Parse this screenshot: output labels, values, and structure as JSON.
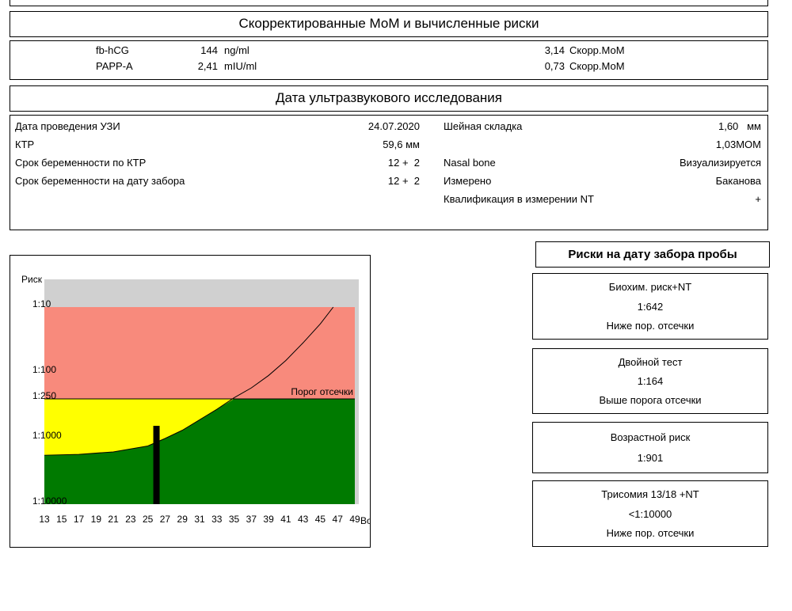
{
  "mom_section": {
    "title": "Скорректированные МоМ и вычисленные риски",
    "rows": [
      {
        "marker": "fb-hCG",
        "value": "144",
        "unit": "ng/ml",
        "mom": "3,14",
        "mom_unit": "Скорр.МоМ"
      },
      {
        "marker": "PAPP-A",
        "value": "2,41",
        "unit": "mIU/ml",
        "mom": "0,73",
        "mom_unit": "Скорр.МоМ"
      }
    ]
  },
  "us_section": {
    "title": "Дата ультразвукового исследования",
    "left": [
      {
        "label": "Дата проведения УЗИ",
        "value": "24.07.2020"
      },
      {
        "label": "КТР",
        "value": "59,6 мм"
      },
      {
        "label": "Срок беременности по КТР",
        "value": "12 +  2"
      },
      {
        "label": "Срок беременности на дату забора",
        "value": "12 +  2"
      }
    ],
    "right": [
      {
        "label": "Шейная складка",
        "value": "1,60   мм"
      },
      {
        "value": "1,03МОМ"
      },
      {
        "label": "Nasal bone",
        "value": "Визуализируется"
      },
      {
        "label": "Измерено",
        "value": "Баканова"
      },
      {
        "label": "Квалификация в измерении NT",
        "value": "+"
      }
    ]
  },
  "chart_data": {
    "type": "line",
    "y_label": "Риск",
    "x_label": "Возр.",
    "x": [
      13,
      17,
      21,
      25,
      27,
      29,
      31,
      33,
      35,
      37,
      39,
      41,
      43,
      45,
      46.5
    ],
    "values": [
      1800,
      1750,
      1600,
      1300,
      1000,
      750,
      520,
      360,
      240,
      170,
      110,
      65,
      35,
      18,
      10
    ],
    "color": "#000000",
    "threshold": {
      "value": 250,
      "label": "Порог отсечки"
    },
    "marker": {
      "x": 26,
      "value": 642,
      "color": "#000000"
    },
    "zone_colors": {
      "high": "#f88a7c",
      "mid": "#ffff00",
      "low": "#007a00"
    },
    "xlim": [
      13,
      49
    ],
    "ylim": [
      10000,
      10
    ],
    "log_y": true,
    "xticks": [
      13,
      15,
      17,
      19,
      21,
      23,
      25,
      27,
      29,
      31,
      33,
      35,
      37,
      39,
      41,
      43,
      45,
      47,
      49
    ],
    "yticks": [
      {
        "value": 10,
        "label": "1:10"
      },
      {
        "value": 100,
        "label": "1:100"
      },
      {
        "value": 250,
        "label": "1:250"
      },
      {
        "value": 1000,
        "label": "1:1000"
      },
      {
        "value": 10000,
        "label": "1:10000"
      }
    ]
  },
  "risks": {
    "title": "Риски на дату забора пробы",
    "boxes": [
      {
        "lines": [
          "Биохим. риск+NT",
          "1:642",
          "Ниже пор. отсечки"
        ]
      },
      {
        "lines": [
          "Двойной тест",
          "1:164",
          "Выше порога отсечки"
        ]
      },
      {
        "lines": [
          "Возрастной риск",
          "1:901"
        ]
      },
      {
        "lines": [
          "Трисомия 13/18 +NT",
          "<1:10000",
          "Ниже пор. отсечки"
        ]
      }
    ]
  }
}
